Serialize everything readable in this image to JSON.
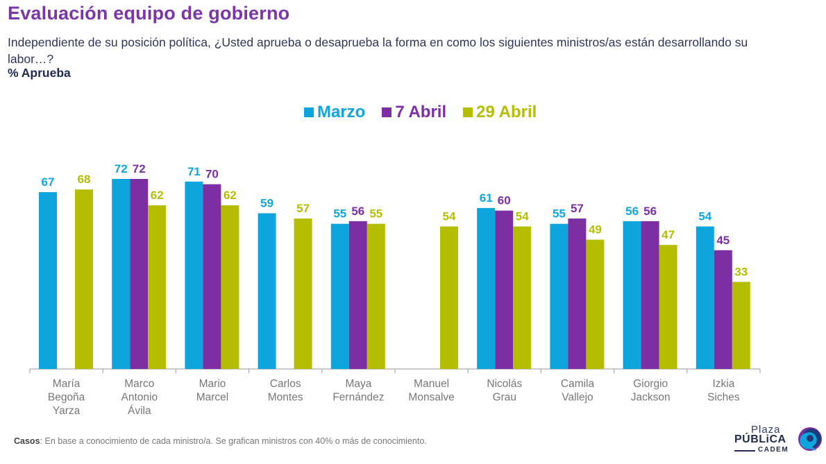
{
  "header": {
    "title": "Evaluación equipo de gobierno",
    "subtitle": "Independiente de su posición política, ¿Usted aprueba o desaprueba la forma en como los siguientes ministros/as están desarrollando su labor…?",
    "measure": "% Aprueba"
  },
  "footer": {
    "label": "Casos",
    "text": ": En base a conocimiento de cada ministro/a. Se grafican ministros con 40% o más de conocimiento."
  },
  "logo": {
    "line1": "Plaza",
    "line2": "PÚBLiCA",
    "line3": "CADEM"
  },
  "chart_data": {
    "type": "bar",
    "title": "Evaluación equipo de gobierno",
    "ylabel": "% Aprueba",
    "xlabel": "",
    "ylim": [
      0,
      80
    ],
    "grid": false,
    "legend_position": "top-center",
    "categories": [
      [
        "María",
        "Begoña",
        "Yarza"
      ],
      [
        "Marco",
        "Antonio",
        "Ávila"
      ],
      [
        "Mario",
        "Marcel"
      ],
      [
        "Carlos",
        "Montes"
      ],
      [
        "Maya",
        "Fernández"
      ],
      [
        "Manuel",
        "Monsalve"
      ],
      [
        "Nicolás",
        "Grau"
      ],
      [
        "Camila",
        "Vallejo"
      ],
      [
        "Giorgio",
        "Jackson"
      ],
      [
        "Izkia",
        "Siches"
      ]
    ],
    "series": [
      {
        "name": "Marzo",
        "color": "#0ea5dc",
        "values": [
          67,
          72,
          71,
          59,
          55,
          null,
          61,
          55,
          56,
          54
        ]
      },
      {
        "name": "7 Abril",
        "color": "#7b2fa3",
        "values": [
          null,
          72,
          70,
          null,
          56,
          null,
          60,
          57,
          56,
          45
        ]
      },
      {
        "name": "29 Abril",
        "color": "#b5bd00",
        "values": [
          68,
          62,
          62,
          57,
          55,
          54,
          54,
          49,
          47,
          33
        ]
      }
    ]
  }
}
